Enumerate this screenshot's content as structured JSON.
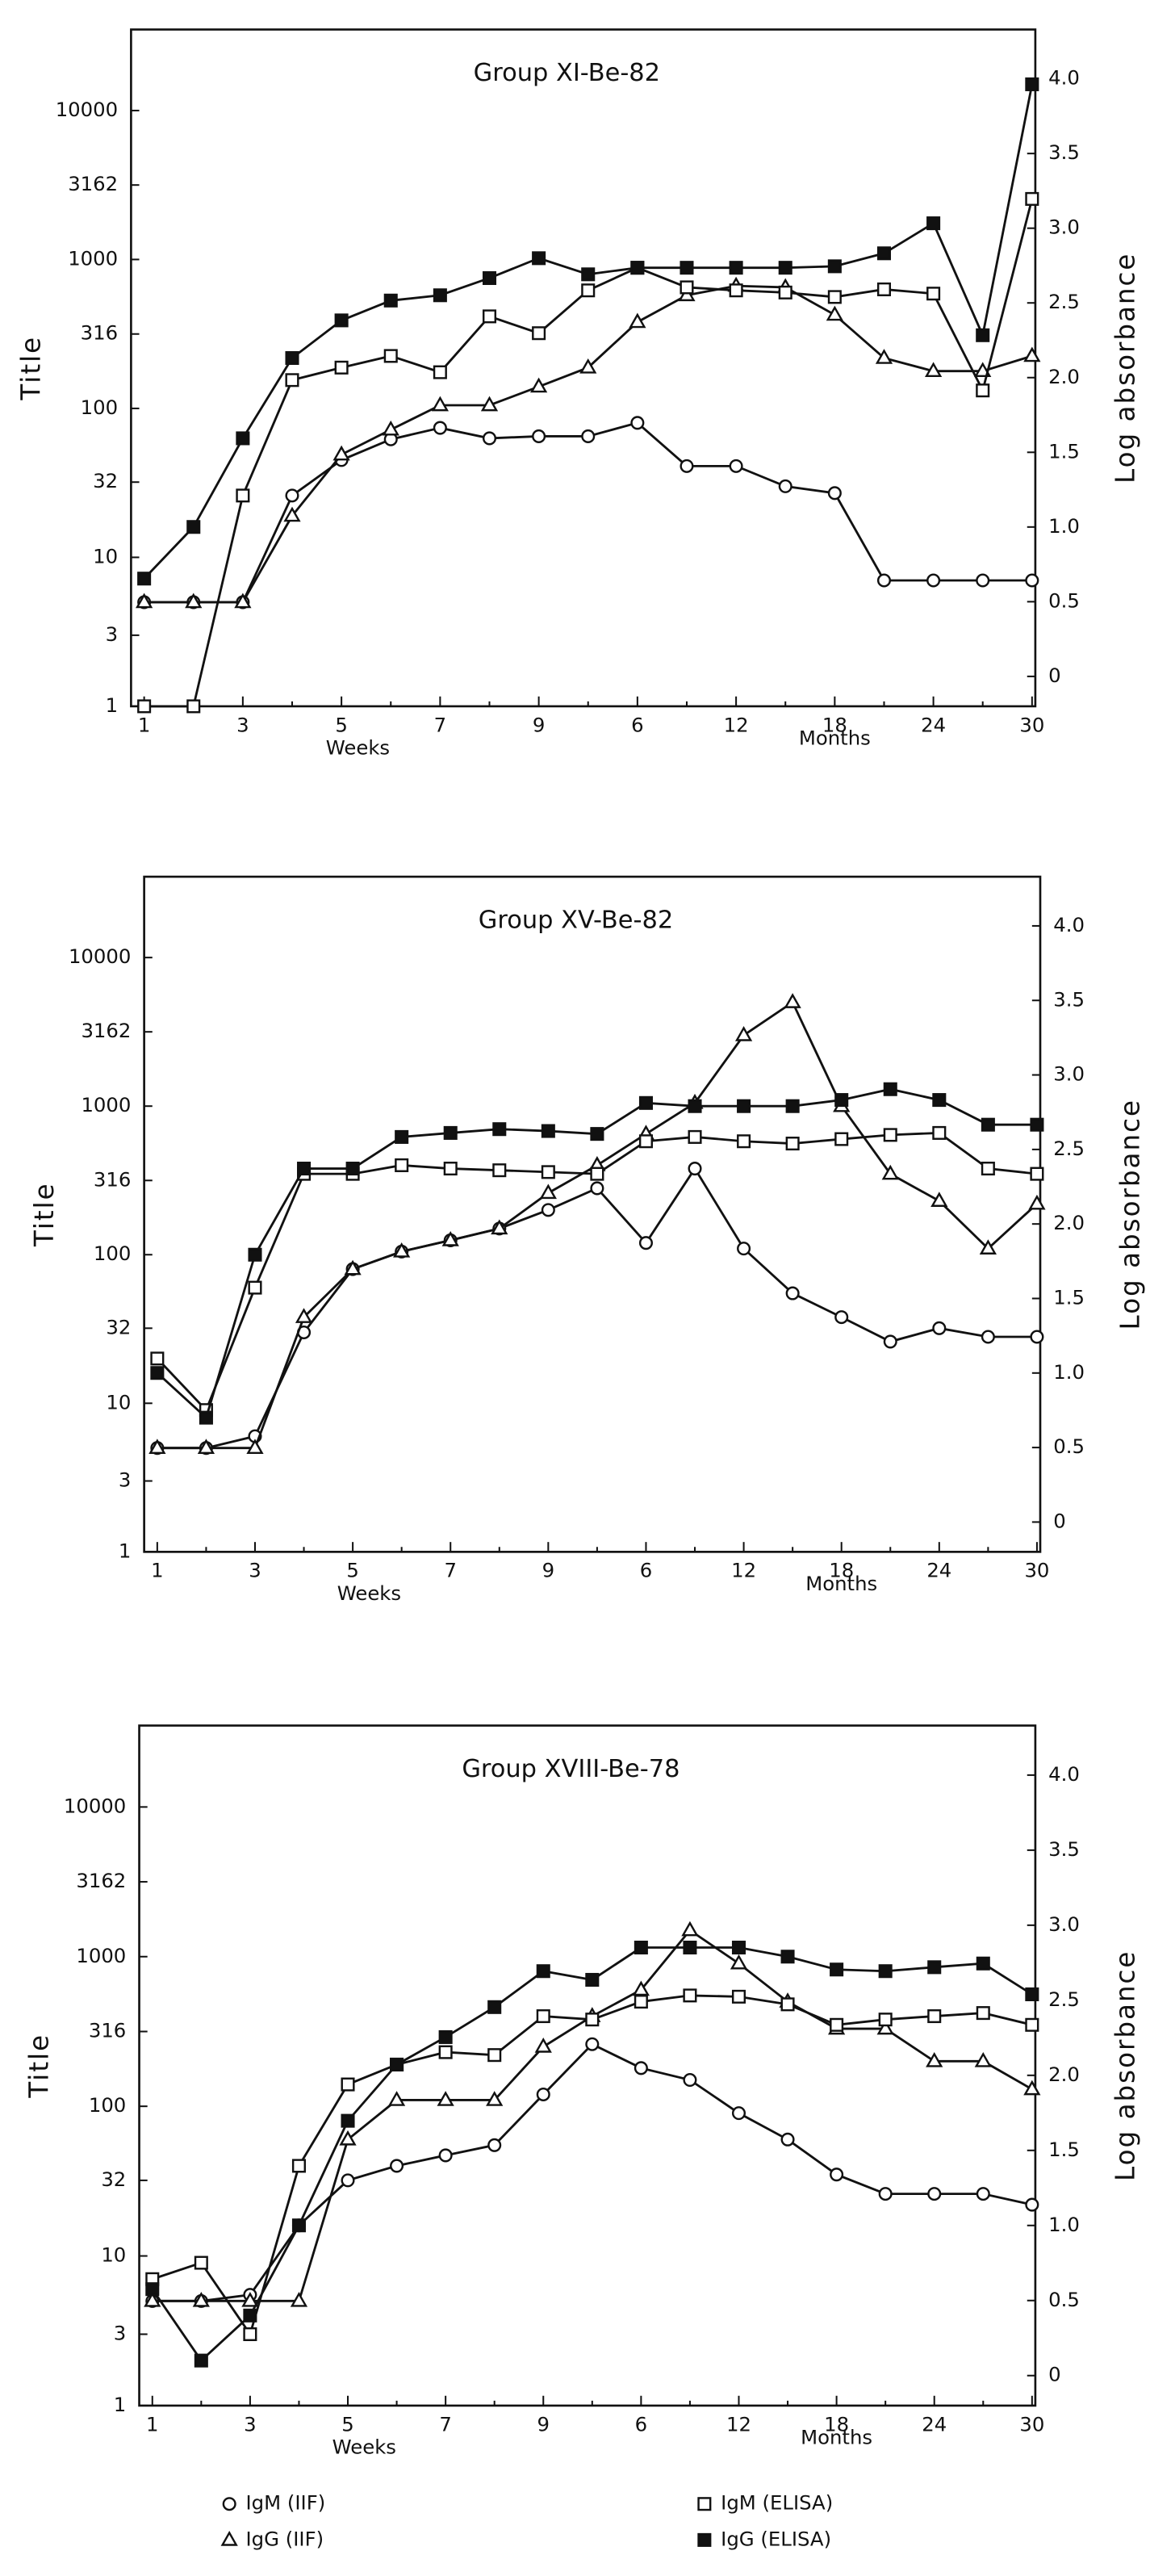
{
  "chart_data": [
    {
      "type": "line",
      "title": "Group XI-Be-82",
      "categories": [
        "1",
        null,
        "3",
        null,
        "5",
        null,
        "7",
        null,
        "9",
        null,
        "6",
        null,
        "12",
        null,
        "18",
        null,
        "24",
        null,
        "30"
      ],
      "x_group_labels": [
        "Weeks",
        "Months"
      ],
      "ylabel": "Title",
      "y2label": "Log absorbance",
      "log_scale": true,
      "ylim": [
        1,
        35000
      ],
      "yticks": [
        1,
        3,
        10,
        32,
        100,
        316,
        1000,
        3162,
        10000
      ],
      "y2lim": [
        -0.2,
        4.33
      ],
      "y2ticks": [
        0,
        0.5,
        {
          "value": 1,
          "label": "1.0"
        },
        1.5,
        {
          "value": 2,
          "label": "2.0"
        },
        2.5,
        {
          "value": 3,
          "label": "3.0"
        },
        3.5,
        {
          "value": 4,
          "label": "4.0"
        }
      ],
      "series": [
        {
          "name": "IgM (IIF)",
          "marker": "circle",
          "color": "#111",
          "values": [
            5,
            5,
            5,
            26,
            45,
            62,
            74,
            63,
            65,
            65,
            80,
            41,
            41,
            30,
            27,
            7,
            7,
            7,
            7
          ]
        },
        {
          "name": "IgG (IIF)",
          "marker": "triangle",
          "color": "#111",
          "values": [
            5,
            5,
            5,
            19,
            49,
            72,
            105,
            105,
            140,
            188,
            380,
            575,
            665,
            650,
            425,
            218,
            178,
            178,
            225
          ]
        },
        {
          "name": "IgM (ELISA)",
          "marker": "square",
          "color": "#111",
          "values": [
            1,
            1,
            26,
            155,
            188,
            225,
            175,
            415,
            320,
            620,
            880,
            650,
            620,
            600,
            560,
            630,
            590,
            132,
            2550
          ]
        },
        {
          "name": "IgG (ELISA)",
          "marker": "filled-square",
          "color": "#111",
          "values": [
            7.2,
            16,
            63,
            218,
            390,
            530,
            575,
            750,
            1020,
            795,
            880,
            880,
            880,
            880,
            900,
            1100,
            1750,
            310,
            15000
          ]
        }
      ]
    },
    {
      "type": "line",
      "title": "Group XV-Be-82",
      "categories": [
        "1",
        null,
        "3",
        null,
        "5",
        null,
        "7",
        null,
        "9",
        null,
        "6",
        null,
        "12",
        null,
        "18",
        null,
        "24",
        null,
        "30"
      ],
      "x_group_labels": [
        "Weeks",
        "Months"
      ],
      "ylabel": "Title",
      "y2label": "Log absorbance",
      "log_scale": true,
      "ylim": [
        1,
        35000
      ],
      "yticks": [
        1,
        3,
        10,
        32,
        100,
        316,
        1000,
        3162,
        10000
      ],
      "y2lim": [
        -0.2,
        4.33
      ],
      "y2ticks": [
        0,
        0.5,
        {
          "value": 1,
          "label": "1.0"
        },
        1.5,
        {
          "value": 2,
          "label": "2.0"
        },
        2.5,
        {
          "value": 3,
          "label": "3.0"
        },
        3.5,
        {
          "value": 4,
          "label": "4.0"
        }
      ],
      "series": [
        {
          "name": "IgM (IIF)",
          "marker": "circle",
          "color": "#111",
          "values": [
            5,
            5,
            6,
            30,
            80,
            105,
            125,
            150,
            200,
            280,
            120,
            380,
            110,
            55,
            38,
            26,
            32,
            28,
            28
          ]
        },
        {
          "name": "IgG (IIF)",
          "marker": "triangle",
          "color": "#111",
          "values": [
            5,
            5,
            5,
            38,
            80,
            105,
            125,
            150,
            260,
            400,
            650,
            1050,
            3000,
            5000,
            1000,
            350,
            230,
            110,
            220
          ]
        },
        {
          "name": "IgM (ELISA)",
          "marker": "square",
          "color": "#111",
          "values": [
            20,
            9,
            60,
            350,
            350,
            400,
            380,
            370,
            360,
            350,
            580,
            620,
            580,
            560,
            600,
            640,
            660,
            380,
            350
          ]
        },
        {
          "name": "IgG (ELISA)",
          "marker": "filled-square",
          "color": "#111",
          "values": [
            16,
            8,
            100,
            380,
            380,
            620,
            660,
            700,
            680,
            650,
            1050,
            1000,
            1000,
            1000,
            1100,
            1300,
            1100,
            750,
            750
          ]
        }
      ]
    },
    {
      "type": "line",
      "title": "Group XVIII-Be-78",
      "categories": [
        "1",
        null,
        "3",
        null,
        "5",
        null,
        "7",
        null,
        "9",
        null,
        "6",
        null,
        "12",
        null,
        "18",
        null,
        "24",
        null,
        "30"
      ],
      "x_group_labels": [
        "Weeks",
        "Months"
      ],
      "ylabel": "Title",
      "y2label": "Log absorbance",
      "log_scale": true,
      "ylim": [
        1,
        35000
      ],
      "yticks": [
        1,
        3,
        10,
        32,
        100,
        316,
        1000,
        3162,
        10000
      ],
      "y2lim": [
        -0.2,
        4.33
      ],
      "y2ticks": [
        0,
        0.5,
        {
          "value": 1,
          "label": "1.0"
        },
        1.5,
        {
          "value": 2,
          "label": "2.0"
        },
        2.5,
        {
          "value": 3,
          "label": "3.0"
        },
        3.5,
        {
          "value": 4,
          "label": "4.0"
        }
      ],
      "legend": "bottom",
      "series": [
        {
          "name": "IgM (IIF)",
          "marker": "circle",
          "color": "#111",
          "values": [
            5,
            5,
            5.5,
            16,
            32,
            40,
            47,
            55,
            120,
            260,
            180,
            150,
            90,
            60,
            35,
            26,
            26,
            26,
            22
          ]
        },
        {
          "name": "IgG (IIF)",
          "marker": "triangle",
          "color": "#111",
          "values": [
            5,
            5,
            5,
            5,
            60,
            110,
            110,
            110,
            250,
            400,
            600,
            1500,
            900,
            500,
            330,
            330,
            200,
            200,
            130
          ]
        },
        {
          "name": "IgM (ELISA)",
          "marker": "square",
          "color": "#111",
          "values": [
            7,
            9,
            3,
            40,
            140,
            190,
            230,
            220,
            400,
            380,
            500,
            550,
            540,
            480,
            350,
            380,
            400,
            420,
            350
          ]
        },
        {
          "name": "IgG (ELISA)",
          "marker": "filled-square",
          "color": "#111",
          "values": [
            6,
            2,
            4,
            16,
            80,
            190,
            290,
            460,
            800,
            700,
            1150,
            1150,
            1150,
            1000,
            820,
            800,
            850,
            900,
            560
          ]
        }
      ]
    }
  ]
}
